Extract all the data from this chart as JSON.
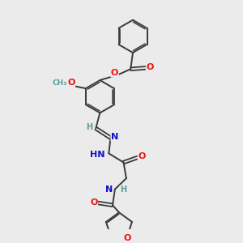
{
  "background_color": "#ebebeb",
  "bond_color": "#3a3a3a",
  "atom_colors": {
    "O": "#ee1111",
    "N": "#1111cc",
    "C": "#3a3a3a",
    "H": "#5a9a9a"
  },
  "figsize": [
    3.0,
    3.0
  ],
  "dpi": 100
}
